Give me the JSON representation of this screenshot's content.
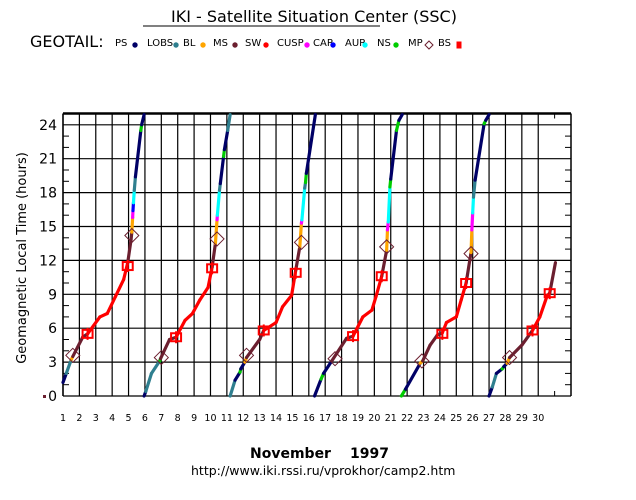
{
  "title": "IKI - Satellite Situation Center (SSC)",
  "satellite_label": "GEOTAIL:",
  "legend": [
    {
      "label": "PS",
      "region": "PS"
    },
    {
      "label": "LOBS",
      "region": "LOBS"
    },
    {
      "label": "BL",
      "region": "BL"
    },
    {
      "label": "MS",
      "region": "MS"
    },
    {
      "label": "SW",
      "region": "SW"
    },
    {
      "label": "CUSP",
      "region": "CUSP"
    },
    {
      "label": "CAP",
      "region": "CAP"
    },
    {
      "label": "AUR",
      "region": "AUR"
    },
    {
      "label": "NS",
      "region": "NS"
    },
    {
      "label": "MP",
      "region": "MP"
    },
    {
      "label": "BS",
      "region": "BS"
    }
  ],
  "colors": {
    "PS": "#000066",
    "LOBS": "#2f7f8f",
    "BL": "#ffa500",
    "MS": "#6b1f2f",
    "SW": "#ff0000",
    "CUSP": "#ff00ff",
    "CAP": "#0000ff",
    "AUR": "#00ffff",
    "NS": "#00cc00",
    "MP": "#6b1f2f",
    "BS": "#ff0000"
  },
  "footer": {
    "month": "November",
    "year": "1997",
    "url": "http://www.iki.rssi.ru/vprokhor/camp2.htm"
  },
  "chart_data": {
    "type": "line",
    "ylabel": "Geomagnetic Local Time (hours)",
    "xlim": [
      1,
      32
    ],
    "ylim": [
      0,
      25
    ],
    "x_ticks": [
      1,
      2,
      3,
      4,
      5,
      6,
      7,
      8,
      9,
      10,
      11,
      12,
      13,
      14,
      15,
      16,
      17,
      18,
      19,
      20,
      21,
      22,
      23,
      24,
      25,
      26,
      27,
      28,
      29,
      30
    ],
    "y_ticks": [
      0,
      3,
      6,
      9,
      12,
      15,
      18,
      21,
      24
    ],
    "y_tick_labels": [
      "0",
      "3",
      "6",
      "9",
      "12",
      "15",
      "18",
      "21",
      "24"
    ],
    "grid": true,
    "orbits": [
      {
        "points": [
          [
            1.0,
            1.2,
            "PS"
          ],
          [
            1.2,
            2.0,
            "PS"
          ],
          [
            1.5,
            3.2,
            "LOBS"
          ],
          [
            1.6,
            3.5,
            "BL"
          ],
          [
            2.2,
            5.2,
            "MS"
          ],
          [
            2.5,
            5.5,
            "MS"
          ],
          [
            3.25,
            7.0,
            "SW"
          ],
          [
            3.7,
            7.3,
            "SW"
          ],
          [
            4.2,
            8.8,
            "SW"
          ],
          [
            4.7,
            10.3,
            "SW"
          ],
          [
            4.95,
            11.8,
            "SW"
          ],
          [
            5.15,
            13.8,
            "MS"
          ],
          [
            5.2,
            14.5,
            "MS"
          ],
          [
            5.25,
            15.8,
            "BL"
          ],
          [
            5.27,
            16.4,
            "CUSP"
          ],
          [
            5.3,
            17.1,
            "CAP"
          ],
          [
            5.35,
            18.2,
            "AUR"
          ],
          [
            5.42,
            19.4,
            "LOBS"
          ],
          [
            5.75,
            23.5,
            "PS"
          ],
          [
            5.8,
            24.0,
            "NS"
          ],
          [
            5.95,
            24.9,
            "PS"
          ]
        ],
        "MP": [
          [
            1.6,
            3.6
          ],
          [
            5.2,
            14.2
          ]
        ],
        "BS": [
          [
            2.5,
            5.5
          ],
          [
            4.95,
            11.5
          ]
        ]
      },
      {
        "points": [
          [
            5.95,
            0,
            "PS"
          ],
          [
            6.05,
            0.4,
            "PS"
          ],
          [
            6.4,
            2.0,
            "LOBS"
          ],
          [
            6.9,
            3.1,
            "LOBS"
          ],
          [
            6.95,
            3.3,
            "NS"
          ],
          [
            7.5,
            5.0,
            "MS"
          ],
          [
            7.9,
            5.2,
            "MS"
          ],
          [
            8.45,
            6.7,
            "SW"
          ],
          [
            8.9,
            7.3,
            "SW"
          ],
          [
            9.35,
            8.5,
            "SW"
          ],
          [
            9.85,
            9.6,
            "SW"
          ],
          [
            10.1,
            11.4,
            "SW"
          ],
          [
            10.3,
            13.5,
            "MS"
          ],
          [
            10.4,
            15.6,
            "BL"
          ],
          [
            10.42,
            16.0,
            "CUSP"
          ],
          [
            10.55,
            18.2,
            "AUR"
          ],
          [
            10.6,
            18.8,
            "LOBS"
          ],
          [
            10.8,
            21.2,
            "PS"
          ],
          [
            10.85,
            21.8,
            "NS"
          ],
          [
            11.05,
            23.5,
            "PS"
          ],
          [
            11.2,
            24.9,
            "LOBS"
          ]
        ],
        "MP": [
          [
            7.0,
            3.4
          ],
          [
            10.4,
            13.9
          ]
        ],
        "BS": [
          [
            7.9,
            5.2
          ],
          [
            10.1,
            11.3
          ]
        ]
      },
      {
        "points": [
          [
            11.2,
            0,
            "LOBS"
          ],
          [
            11.5,
            1.4,
            "LOBS"
          ],
          [
            11.8,
            2.1,
            "PS"
          ],
          [
            11.85,
            2.4,
            "NS"
          ],
          [
            12.1,
            3.0,
            "PS"
          ],
          [
            12.2,
            3.4,
            "BL"
          ],
          [
            13.0,
            5.0,
            "MS"
          ],
          [
            13.25,
            5.8,
            "MS"
          ],
          [
            14.0,
            6.5,
            "SW"
          ],
          [
            14.4,
            7.9,
            "SW"
          ],
          [
            14.95,
            8.9,
            "SW"
          ],
          [
            15.2,
            11.1,
            "SW"
          ],
          [
            15.45,
            13.2,
            "MS"
          ],
          [
            15.55,
            15.3,
            "BL"
          ],
          [
            15.58,
            15.6,
            "CUSP"
          ],
          [
            15.75,
            18.4,
            "AUR"
          ],
          [
            15.8,
            18.9,
            "LOBS"
          ],
          [
            15.85,
            19.7,
            "NS"
          ],
          [
            16.4,
            24.9,
            "PS"
          ]
        ],
        "MP": [
          [
            12.2,
            3.6
          ],
          [
            15.55,
            13.6
          ]
        ],
        "BS": [
          [
            13.25,
            5.8
          ],
          [
            15.2,
            10.9
          ]
        ]
      },
      {
        "points": [
          [
            16.35,
            0,
            "PS"
          ],
          [
            16.75,
            1.5,
            "PS"
          ],
          [
            16.9,
            2.0,
            "NS"
          ],
          [
            17.4,
            3.1,
            "PS"
          ],
          [
            18.3,
            5.1,
            "MS"
          ],
          [
            18.7,
            5.3,
            "MS"
          ],
          [
            19.3,
            7.0,
            "SW"
          ],
          [
            19.85,
            7.6,
            "SW"
          ],
          [
            20.1,
            8.8,
            "SW"
          ],
          [
            20.45,
            10.6,
            "SW"
          ],
          [
            20.75,
            12.9,
            "MS"
          ],
          [
            20.8,
            14.7,
            "BL"
          ],
          [
            20.85,
            15.4,
            "CUSP"
          ],
          [
            20.95,
            18.5,
            "AUR"
          ],
          [
            21.0,
            19.2,
            "NS"
          ],
          [
            21.35,
            23.5,
            "PS"
          ],
          [
            21.5,
            24.4,
            "NS"
          ],
          [
            21.7,
            24.9,
            "PS"
          ]
        ],
        "MP": [
          [
            17.6,
            3.3
          ],
          [
            20.75,
            13.2
          ]
        ],
        "BS": [
          [
            18.7,
            5.3
          ],
          [
            20.45,
            10.6
          ]
        ]
      },
      {
        "points": [
          [
            21.65,
            0,
            "NS"
          ],
          [
            21.9,
            0.6,
            "NS"
          ],
          [
            22.8,
            2.9,
            "PS"
          ],
          [
            22.95,
            3.1,
            "BL"
          ],
          [
            23.4,
            4.5,
            "MS"
          ],
          [
            23.85,
            5.4,
            "MS"
          ],
          [
            24.15,
            5.6,
            "MS"
          ],
          [
            24.4,
            6.5,
            "SW"
          ],
          [
            25.0,
            7.0,
            "SW"
          ],
          [
            25.3,
            8.5,
            "SW"
          ],
          [
            25.6,
            10.0,
            "SW"
          ],
          [
            25.9,
            12.7,
            "MS"
          ],
          [
            25.95,
            14.7,
            "BL"
          ],
          [
            26.0,
            16.2,
            "CUSP"
          ],
          [
            26.05,
            17.6,
            "AUR"
          ],
          [
            26.15,
            19.1,
            "LOBS"
          ],
          [
            26.7,
            24.1,
            "PS"
          ],
          [
            26.8,
            24.4,
            "NS"
          ],
          [
            27.0,
            24.9,
            "PS"
          ]
        ],
        "MP": [
          [
            22.9,
            3.1
          ],
          [
            25.9,
            12.6
          ]
        ],
        "BS": [
          [
            24.15,
            5.5
          ],
          [
            25.6,
            10.0
          ]
        ]
      },
      {
        "points": [
          [
            27.0,
            0,
            "PS"
          ],
          [
            27.2,
            0.8,
            "PS"
          ],
          [
            27.45,
            2.0,
            "LOBS"
          ],
          [
            27.8,
            2.4,
            "PS"
          ],
          [
            27.9,
            2.6,
            "NS"
          ],
          [
            28.1,
            2.9,
            "PS"
          ],
          [
            28.25,
            3.4,
            "BL"
          ],
          [
            29.0,
            4.5,
            "MS"
          ],
          [
            29.65,
            5.8,
            "MS"
          ],
          [
            30.1,
            7.0,
            "SW"
          ],
          [
            30.55,
            8.9,
            "SW"
          ],
          [
            30.7,
            9.1,
            "SW"
          ],
          [
            31.05,
            11.8,
            "MS"
          ]
        ],
        "MP": [
          [
            28.25,
            3.4
          ]
        ],
        "BS": [
          [
            29.65,
            5.8
          ],
          [
            30.7,
            9.1
          ]
        ]
      }
    ]
  }
}
